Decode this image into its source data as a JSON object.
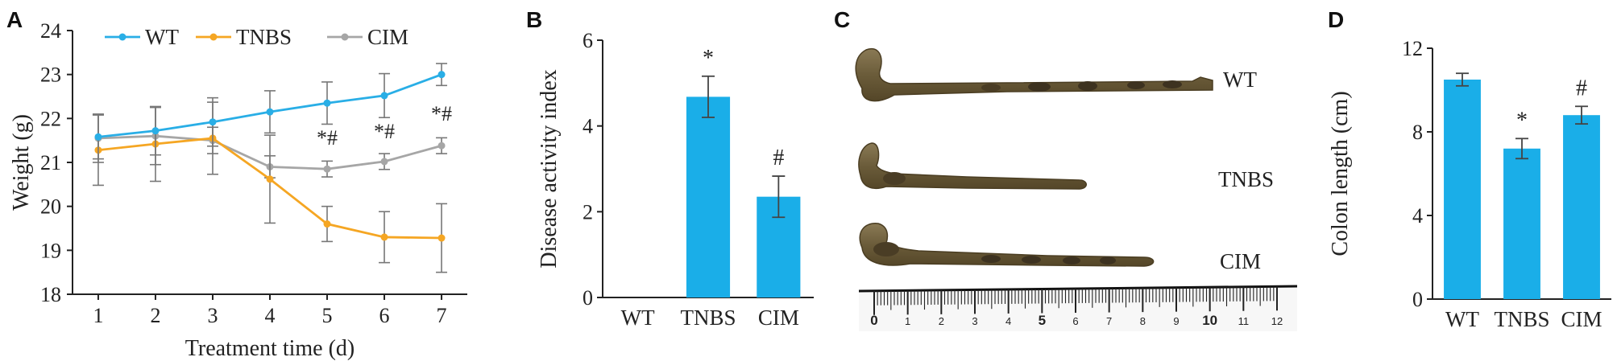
{
  "panels": {
    "a": {
      "letter": "A"
    },
    "b": {
      "letter": "B"
    },
    "c": {
      "letter": "C"
    },
    "d": {
      "letter": "D"
    }
  },
  "colors": {
    "wt": "#29aee6",
    "tnbs": "#f5a623",
    "cim": "#a6a6a6",
    "bar": "#1aaee8"
  },
  "chart_data": [
    {
      "type": "line",
      "title": "",
      "xlabel": "Treatment time (d)",
      "ylabel": "Weight (g)",
      "ylim": [
        18,
        24
      ],
      "yticks": [
        18,
        19,
        20,
        21,
        22,
        23,
        24
      ],
      "x": [
        1,
        2,
        3,
        4,
        5,
        6,
        7
      ],
      "legend": "top-left",
      "series": [
        {
          "name": "WT",
          "values": [
            21.58,
            21.72,
            21.92,
            22.15,
            22.35,
            22.52,
            23.0
          ],
          "err": [
            0.5,
            0.55,
            0.55,
            0.48,
            0.48,
            0.5,
            0.25
          ]
        },
        {
          "name": "TNBS",
          "values": [
            21.28,
            21.42,
            21.55,
            20.62,
            19.6,
            19.3,
            19.28
          ],
          "err": [
            0.8,
            0.85,
            0.82,
            1.0,
            0.4,
            0.58,
            0.78
          ]
        },
        {
          "name": "CIM",
          "values": [
            21.55,
            21.6,
            21.5,
            20.9,
            20.85,
            21.02,
            21.38
          ],
          "err": [
            0.55,
            0.65,
            0.3,
            0.25,
            0.18,
            0.18,
            0.18
          ]
        }
      ],
      "annotations": [
        {
          "x": 5,
          "y": 21.4,
          "text": "*#"
        },
        {
          "x": 6,
          "y": 21.55,
          "text": "*#"
        },
        {
          "x": 7,
          "y": 21.95,
          "text": "*#"
        }
      ]
    },
    {
      "type": "bar",
      "title": "",
      "xlabel": "",
      "ylabel": "Disease activity index",
      "ylim": [
        0,
        6
      ],
      "yticks": [
        0,
        2,
        4,
        6
      ],
      "categories": [
        "WT",
        "TNBS",
        "CIM"
      ],
      "values": [
        0,
        4.68,
        2.35
      ],
      "err": [
        0,
        0.48,
        0.48
      ],
      "annotations": [
        "",
        "*",
        "#"
      ]
    },
    {
      "type": "bar",
      "title": "",
      "xlabel": "",
      "ylabel": "Colon length (cm)",
      "ylim": [
        0,
        12
      ],
      "yticks": [
        0,
        4,
        8,
        12
      ],
      "categories": [
        "WT",
        "TNBS",
        "CIM"
      ],
      "values": [
        10.5,
        7.2,
        8.8
      ],
      "err": [
        0.3,
        0.48,
        0.42
      ],
      "annotations": [
        "",
        "*",
        "#"
      ]
    }
  ],
  "photo": {
    "labels": [
      "WT",
      "TNBS",
      "CIM"
    ],
    "ruler_numbers": [
      "0",
      "1",
      "2",
      "3",
      "4",
      "5",
      "6",
      "7",
      "8",
      "9",
      "10",
      "11",
      "12"
    ]
  }
}
